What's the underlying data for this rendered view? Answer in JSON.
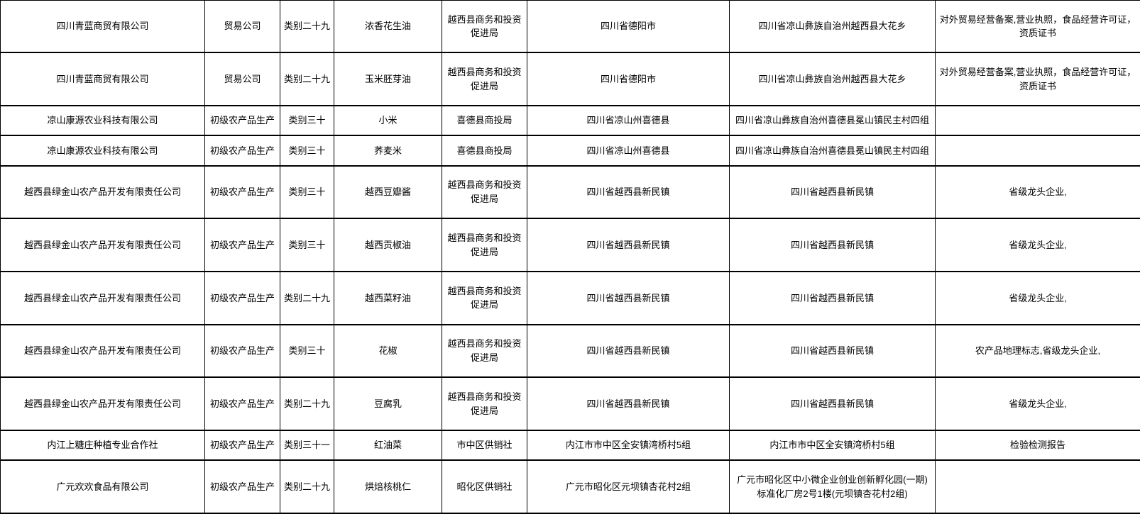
{
  "colors": {
    "background": "#ffffff",
    "text": "#000000",
    "gridline": "#000000"
  },
  "table": {
    "column_keys": [
      "company-name",
      "company-type",
      "category",
      "product-name",
      "recommending-department",
      "city",
      "address",
      "certificates"
    ],
    "rows": [
      [
        "四川青蓝商贸有限公司",
        "贸易公司",
        "类别二十九",
        "浓香花生油",
        "越西县商务和投资促进局",
        "四川省德阳市",
        "四川省凉山彝族自治州越西县大花乡",
        "对外贸易经营备案,营业执照，食品经营许可证，资质证书"
      ],
      [
        "四川青蓝商贸有限公司",
        "贸易公司",
        "类别二十九",
        "玉米胚芽油",
        "越西县商务和投资促进局",
        "四川省德阳市",
        "四川省凉山彝族自治州越西县大花乡",
        "对外贸易经营备案,营业执照，食品经营许可证，资质证书"
      ],
      [
        "凉山康源农业科技有限公司",
        "初级农产品生产",
        "类别三十",
        "小米",
        "喜德县商投局",
        "四川省凉山州喜德县",
        "四川省凉山彝族自治州喜德县冕山镇民主村四组",
        ""
      ],
      [
        "凉山康源农业科技有限公司",
        "初级农产品生产",
        "类别三十",
        "荞麦米",
        "喜德县商投局",
        "四川省凉山州喜德县",
        "四川省凉山彝族自治州喜德县冕山镇民主村四组",
        ""
      ],
      [
        "越西县绿金山农产品开发有限责任公司",
        "初级农产品生产",
        "类别三十",
        "越西豆瓣酱",
        "越西县商务和投资促进局",
        "四川省越西县新民镇",
        "四川省越西县新民镇",
        "省级龙头企业,"
      ],
      [
        "越西县绿金山农产品开发有限责任公司",
        "初级农产品生产",
        "类别三十",
        "越西贡椒油",
        "越西县商务和投资促进局",
        "四川省越西县新民镇",
        "四川省越西县新民镇",
        "省级龙头企业,"
      ],
      [
        "越西县绿金山农产品开发有限责任公司",
        "初级农产品生产",
        "类别二十九",
        "越西菜籽油",
        "越西县商务和投资促进局",
        "四川省越西县新民镇",
        "四川省越西县新民镇",
        "省级龙头企业,"
      ],
      [
        "越西县绿金山农产品开发有限责任公司",
        "初级农产品生产",
        "类别三十",
        "花椒",
        "越西县商务和投资促进局",
        "四川省越西县新民镇",
        "四川省越西县新民镇",
        "农产品地理标志,省级龙头企业,"
      ],
      [
        "越西县绿金山农产品开发有限责任公司",
        "初级农产品生产",
        "类别二十九",
        "豆腐乳",
        "越西县商务和投资促进局",
        "四川省越西县新民镇",
        "四川省越西县新民镇",
        "省级龙头企业,"
      ],
      [
        "内江上糖庄种植专业合作社",
        "初级农产品生产",
        "类别三十一",
        "红油菜",
        "市中区供销社",
        "内江市市中区全安镇湾桥村5组",
        "内江市市中区全安镇湾桥村5组",
        "检验检测报告"
      ],
      [
        "广元欢欢食品有限公司",
        "初级农产品生产",
        "类别二十九",
        "烘焙核桃仁",
        "昭化区供销社",
        "广元市昭化区元坝镇杏花村2组",
        "广元市昭化区中小微企业创业创新孵化园(一期)标准化厂房2号1楼(元坝镇杏花村2组)",
        ""
      ]
    ]
  }
}
